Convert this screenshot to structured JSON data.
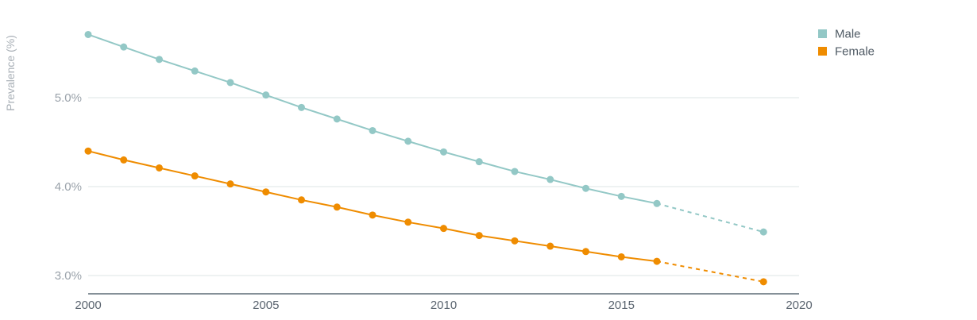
{
  "chart_data": {
    "type": "line",
    "title": "",
    "xlabel": "",
    "ylabel": "Prevalence (%)",
    "xlim": [
      2000,
      2020
    ],
    "ylim": [
      2.8,
      5.8
    ],
    "x_ticks": [
      2000,
      2005,
      2010,
      2015,
      2020
    ],
    "y_ticks": [
      {
        "value": 3.0,
        "label": "3.0%"
      },
      {
        "value": 4.0,
        "label": "4.0%"
      },
      {
        "value": 5.0,
        "label": "5.0%"
      }
    ],
    "grid": true,
    "legend_position": "top-right",
    "series": [
      {
        "name": "Male",
        "color": "#93c8c6",
        "x": [
          2000,
          2001,
          2002,
          2003,
          2004,
          2005,
          2006,
          2007,
          2008,
          2009,
          2010,
          2011,
          2012,
          2013,
          2014,
          2015,
          2016,
          2019
        ],
        "values": [
          5.71,
          5.57,
          5.43,
          5.3,
          5.17,
          5.03,
          4.89,
          4.76,
          4.63,
          4.51,
          4.39,
          4.28,
          4.17,
          4.08,
          3.98,
          3.89,
          3.81,
          3.49
        ],
        "projected_from_index": 16
      },
      {
        "name": "Female",
        "color": "#ef8c00",
        "x": [
          2000,
          2001,
          2002,
          2003,
          2004,
          2005,
          2006,
          2007,
          2008,
          2009,
          2010,
          2011,
          2012,
          2013,
          2014,
          2015,
          2016,
          2019
        ],
        "values": [
          4.4,
          4.3,
          4.21,
          4.12,
          4.03,
          3.94,
          3.85,
          3.77,
          3.68,
          3.6,
          3.53,
          3.45,
          3.39,
          3.33,
          3.27,
          3.21,
          3.16,
          2.93
        ],
        "projected_from_index": 16
      }
    ]
  }
}
